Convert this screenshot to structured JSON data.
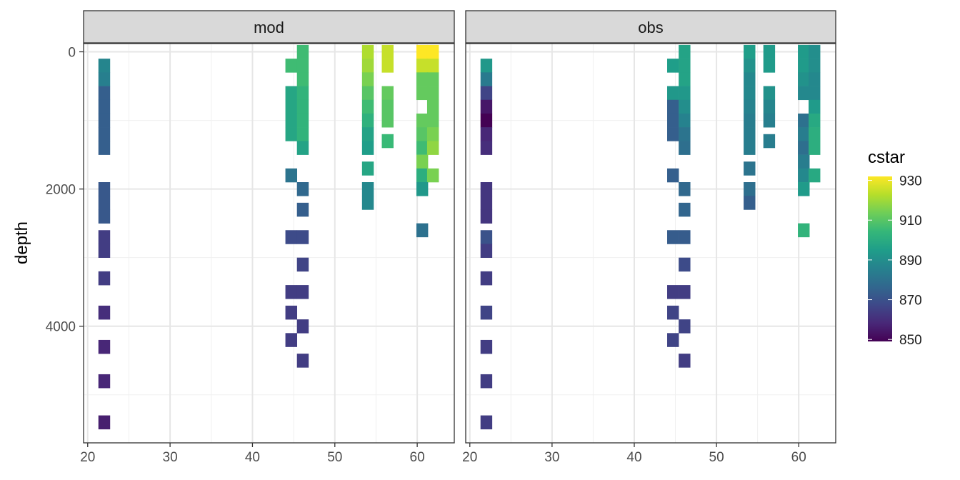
{
  "chart_data": {
    "type": "heatmap",
    "facets": [
      "mod",
      "obs"
    ],
    "xlabel": "",
    "ylabel": "depth",
    "xlim": [
      19.5,
      64.5
    ],
    "ylim": [
      5700,
      -120
    ],
    "y_reversed": true,
    "x_ticks": [
      20,
      30,
      40,
      50,
      60
    ],
    "y_ticks": [
      0,
      2000,
      4000
    ],
    "grid": true,
    "tile_width": 1.4,
    "tile_height": 200,
    "legend": {
      "title": "cstar",
      "position": "right",
      "min": 849,
      "max": 932,
      "ticks": [
        850,
        870,
        890,
        910,
        930
      ]
    },
    "colorscale": "viridis",
    "panels": {
      "mod": [
        [
          22,
          200,
          887
        ],
        [
          22,
          400,
          885
        ],
        [
          22,
          600,
          874
        ],
        [
          22,
          800,
          874
        ],
        [
          22,
          1000,
          874
        ],
        [
          22,
          1200,
          874
        ],
        [
          22,
          1400,
          874
        ],
        [
          22,
          2000,
          872
        ],
        [
          22,
          2200,
          872
        ],
        [
          22,
          2400,
          872
        ],
        [
          22,
          2700,
          864
        ],
        [
          22,
          2900,
          864
        ],
        [
          22,
          3300,
          864
        ],
        [
          22,
          3800,
          860
        ],
        [
          22,
          4300,
          858
        ],
        [
          22,
          4800,
          858
        ],
        [
          22,
          5400,
          856
        ],
        [
          44.7,
          200,
          906
        ],
        [
          44.7,
          600,
          898
        ],
        [
          44.7,
          800,
          898
        ],
        [
          44.7,
          1000,
          898
        ],
        [
          44.7,
          1200,
          898
        ],
        [
          46.1,
          0,
          906
        ],
        [
          46.1,
          200,
          906
        ],
        [
          46.1,
          400,
          906
        ],
        [
          46.1,
          600,
          903
        ],
        [
          46.1,
          800,
          903
        ],
        [
          46.1,
          1000,
          903
        ],
        [
          46.1,
          1200,
          903
        ],
        [
          46.1,
          1400,
          897
        ],
        [
          44.7,
          1800,
          881
        ],
        [
          46.1,
          2000,
          877
        ],
        [
          46.1,
          2300,
          874
        ],
        [
          44.7,
          2700,
          868
        ],
        [
          46.1,
          2700,
          868
        ],
        [
          46.1,
          3100,
          866
        ],
        [
          44.7,
          3500,
          864
        ],
        [
          46.1,
          3500,
          864
        ],
        [
          44.7,
          3800,
          864
        ],
        [
          46.1,
          4000,
          864
        ],
        [
          44.7,
          4200,
          864
        ],
        [
          46.1,
          4500,
          864
        ],
        [
          54,
          0,
          922
        ],
        [
          54,
          200,
          920
        ],
        [
          54,
          400,
          915
        ],
        [
          54,
          600,
          910
        ],
        [
          54,
          800,
          906
        ],
        [
          54,
          1000,
          902
        ],
        [
          54,
          1200,
          897
        ],
        [
          54,
          1400,
          895
        ],
        [
          54,
          1700,
          898
        ],
        [
          54,
          2000,
          888
        ],
        [
          54,
          2200,
          888
        ],
        [
          56.4,
          0,
          925
        ],
        [
          56.4,
          200,
          925
        ],
        [
          56.4,
          600,
          912
        ],
        [
          56.4,
          800,
          910
        ],
        [
          56.4,
          1000,
          910
        ],
        [
          56.4,
          1300,
          905
        ],
        [
          60.6,
          0,
          932
        ],
        [
          61.9,
          0,
          932
        ],
        [
          60.6,
          200,
          925
        ],
        [
          61.9,
          200,
          925
        ],
        [
          60.6,
          400,
          912
        ],
        [
          61.9,
          400,
          912
        ],
        [
          60.6,
          600,
          912
        ],
        [
          61.9,
          600,
          912
        ],
        [
          61.9,
          800,
          912
        ],
        [
          60.6,
          1000,
          912
        ],
        [
          61.9,
          1000,
          912
        ],
        [
          60.6,
          1200,
          910
        ],
        [
          61.9,
          1200,
          915
        ],
        [
          60.6,
          1400,
          906
        ],
        [
          61.9,
          1400,
          918
        ],
        [
          60.6,
          1600,
          915
        ],
        [
          60.6,
          1800,
          901
        ],
        [
          61.9,
          1800,
          915
        ],
        [
          60.6,
          2000,
          893
        ],
        [
          60.6,
          2600,
          880
        ]
      ],
      "obs": [
        [
          22,
          200,
          893
        ],
        [
          22,
          400,
          883
        ],
        [
          22,
          600,
          866
        ],
        [
          22,
          800,
          854
        ],
        [
          22,
          1000,
          849
        ],
        [
          22,
          1200,
          858
        ],
        [
          22,
          1400,
          860
        ],
        [
          22,
          2000,
          862
        ],
        [
          22,
          2200,
          862
        ],
        [
          22,
          2400,
          862
        ],
        [
          22,
          2700,
          870
        ],
        [
          22,
          2900,
          864
        ],
        [
          22,
          3300,
          864
        ],
        [
          22,
          3800,
          866
        ],
        [
          22,
          4300,
          864
        ],
        [
          22,
          4800,
          864
        ],
        [
          22,
          5400,
          864
        ],
        [
          44.7,
          200,
          895
        ],
        [
          44.7,
          600,
          893
        ],
        [
          44.7,
          800,
          874
        ],
        [
          44.7,
          1000,
          874
        ],
        [
          44.7,
          1200,
          874
        ],
        [
          46.1,
          0,
          897
        ],
        [
          46.1,
          200,
          897
        ],
        [
          46.1,
          400,
          897
        ],
        [
          46.1,
          600,
          893
        ],
        [
          46.1,
          800,
          890
        ],
        [
          46.1,
          1000,
          886
        ],
        [
          46.1,
          1200,
          881
        ],
        [
          46.1,
          1400,
          879
        ],
        [
          44.7,
          1800,
          874
        ],
        [
          46.1,
          2000,
          877
        ],
        [
          46.1,
          2300,
          876
        ],
        [
          44.7,
          2700,
          873
        ],
        [
          46.1,
          2700,
          873
        ],
        [
          46.1,
          3100,
          868
        ],
        [
          44.7,
          3500,
          864
        ],
        [
          46.1,
          3500,
          864
        ],
        [
          44.7,
          3800,
          866
        ],
        [
          46.1,
          4000,
          866
        ],
        [
          44.7,
          4200,
          866
        ],
        [
          46.1,
          4500,
          864
        ],
        [
          54,
          0,
          895
        ],
        [
          54,
          200,
          891
        ],
        [
          54,
          400,
          888
        ],
        [
          54,
          600,
          888
        ],
        [
          54,
          800,
          886
        ],
        [
          54,
          1000,
          884
        ],
        [
          54,
          1200,
          884
        ],
        [
          54,
          1400,
          884
        ],
        [
          54,
          1700,
          881
        ],
        [
          54,
          2000,
          879
        ],
        [
          54,
          2200,
          874
        ],
        [
          56.4,
          0,
          894
        ],
        [
          56.4,
          200,
          894
        ],
        [
          56.4,
          600,
          891
        ],
        [
          56.4,
          800,
          887
        ],
        [
          56.4,
          1000,
          885
        ],
        [
          56.4,
          1300,
          884
        ],
        [
          60.6,
          0,
          894
        ],
        [
          61.9,
          0,
          890
        ],
        [
          60.6,
          200,
          894
        ],
        [
          61.9,
          200,
          890
        ],
        [
          60.6,
          400,
          891
        ],
        [
          61.9,
          400,
          888
        ],
        [
          60.6,
          600,
          888
        ],
        [
          61.9,
          600,
          888
        ],
        [
          61.9,
          800,
          894
        ],
        [
          60.6,
          1000,
          880
        ],
        [
          61.9,
          1000,
          899
        ],
        [
          60.6,
          1200,
          884
        ],
        [
          61.9,
          1200,
          901
        ],
        [
          60.6,
          1400,
          879
        ],
        [
          61.9,
          1400,
          901
        ],
        [
          60.6,
          1600,
          884
        ],
        [
          60.6,
          1800,
          888
        ],
        [
          61.9,
          1800,
          899
        ],
        [
          60.6,
          2000,
          894
        ],
        [
          60.6,
          2600,
          903
        ]
      ]
    }
  }
}
